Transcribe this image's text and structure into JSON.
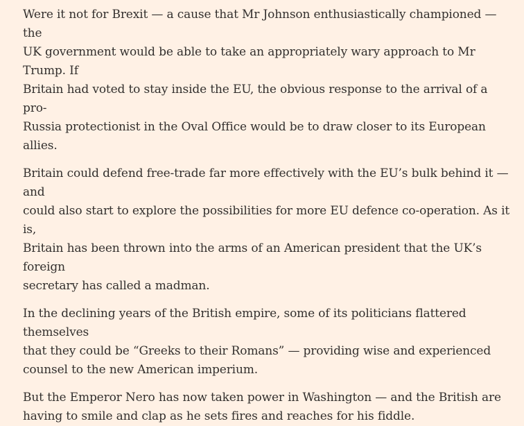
{
  "article": {
    "paragraphs": [
      "Were it not for Brexit — a cause that Mr Johnson enthusiastically championed — the\nUK government would be able to take an appropriately wary approach to Mr Trump. If\nBritain had voted to stay inside the EU, the obvious response to the arrival of a pro-\nRussia protectionist in the Oval Office would be to draw closer to its European allies.",
      "Britain could defend free-trade far more effectively with the EU’s bulk behind it — and\ncould also start to explore the possibilities for more EU defence co-operation. As it is,\nBritain has been thrown into the arms of an American president that the UK’s foreign\nsecretary has called a madman.",
      "In the declining years of the British empire, some of its politicians flattered themselves\nthat they could be “Greeks to their Romans” — providing wise and experienced\ncounsel to the new American imperium.",
      "But the Emperor Nero has now taken power in Washington — and the British are\nhaving to smile and clap as he sets fires and reaches for his fiddle."
    ]
  },
  "colors": {
    "background": "#fff1e5",
    "text": "#33302e"
  }
}
